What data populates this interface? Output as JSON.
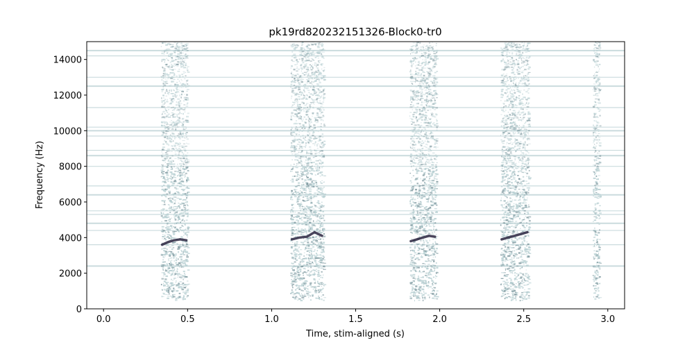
{
  "chart_data": {
    "type": "heatmap",
    "title": "pk19rd820232151326-Block0-tr0",
    "xlabel": "Time, stim-aligned (s)",
    "ylabel": "Frequency (Hz)",
    "xlim": [
      -0.1,
      3.1
    ],
    "ylim": [
      0,
      15000
    ],
    "x_ticks": [
      0.0,
      0.5,
      1.0,
      1.5,
      2.0,
      2.5,
      3.0
    ],
    "x_tick_labels": [
      "0.0",
      "0.5",
      "1.0",
      "1.5",
      "2.0",
      "2.5",
      "3.0"
    ],
    "y_ticks": [
      0,
      2000,
      4000,
      6000,
      8000,
      10000,
      12000,
      14000
    ],
    "y_tick_labels": [
      "0",
      "2000",
      "4000",
      "6000",
      "8000",
      "10000",
      "12000",
      "14000"
    ],
    "grid": false,
    "colormap": "bone_r",
    "colors": {
      "light": "#b4cdd0",
      "mid": "#7d979e",
      "dark": "#2a2440"
    },
    "syllables": [
      {
        "start_s": 0.34,
        "end_s": 0.5,
        "freq_min_hz": 500,
        "freq_max_hz": 15000,
        "peak_contour_hz": [
          3600,
          3750,
          3850,
          3900,
          3850
        ]
      },
      {
        "start_s": 1.11,
        "end_s": 1.31,
        "freq_min_hz": 500,
        "freq_max_hz": 15000,
        "peak_contour_hz": [
          3900,
          4000,
          4050,
          4300,
          4100
        ]
      },
      {
        "start_s": 1.82,
        "end_s": 1.98,
        "freq_min_hz": 500,
        "freq_max_hz": 15000,
        "peak_contour_hz": [
          3800,
          3900,
          4000,
          4100,
          4050
        ]
      },
      {
        "start_s": 2.36,
        "end_s": 2.53,
        "freq_min_hz": 500,
        "freq_max_hz": 15000,
        "peak_contour_hz": [
          3900,
          4000,
          4100,
          4200,
          4300
        ]
      },
      {
        "start_s": 2.91,
        "end_s": 2.95,
        "freq_min_hz": 500,
        "freq_max_hz": 15000,
        "peak_contour_hz": []
      }
    ],
    "noise_bands_hz": [
      2400,
      3600,
      4400,
      4800,
      5300,
      5500,
      6400,
      6900,
      8000,
      8600,
      8900,
      9700,
      10000,
      10200,
      11300,
      12500,
      13000,
      14200,
      14500
    ]
  }
}
